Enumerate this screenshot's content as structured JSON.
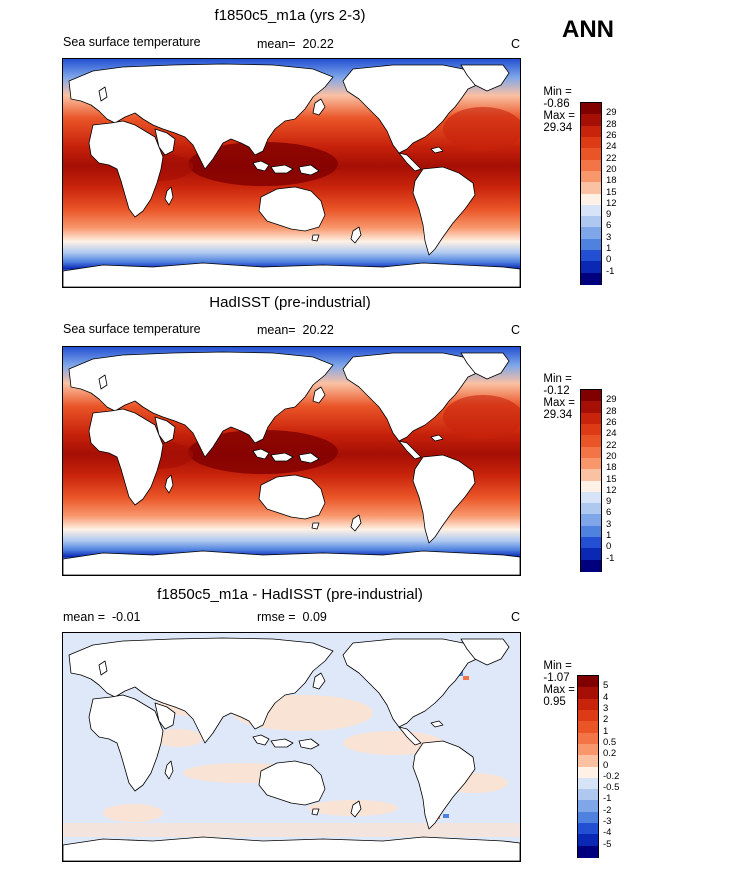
{
  "season": "ANN",
  "units": "C",
  "panels": [
    {
      "id": "model",
      "title": "f1850c5_m1a (yrs 2-3)",
      "field": "Sea surface temperature",
      "mean_label": "mean=",
      "mean_value": "20.22",
      "min_label": "Min =",
      "min_value": "-0.86",
      "max_label": "Max =",
      "max_value": "29.34",
      "levels": [
        "29",
        "28",
        "26",
        "24",
        "22",
        "20",
        "18",
        "15",
        "12",
        "9",
        "6",
        "3",
        "1",
        "0",
        "-1"
      ],
      "colors": [
        "#800000",
        "#a50f05",
        "#c8230b",
        "#dd3a16",
        "#ea5528",
        "#f37446",
        "#f7976b",
        "#fac1a3",
        "#fff1e5",
        "#d7e3f7",
        "#aec8f0",
        "#7fa6e8",
        "#4f82df",
        "#2350d3",
        "#0b28b5",
        "#00007f"
      ]
    },
    {
      "id": "obs",
      "title": "HadISST (pre-industrial)",
      "field": "Sea surface temperature",
      "mean_label": "mean=",
      "mean_value": "20.22",
      "min_label": "Min =",
      "min_value": "-0.12",
      "max_label": "Max =",
      "max_value": "29.34",
      "levels": [
        "29",
        "28",
        "26",
        "24",
        "22",
        "20",
        "18",
        "15",
        "12",
        "9",
        "6",
        "3",
        "1",
        "0",
        "-1"
      ],
      "colors": [
        "#800000",
        "#a50f05",
        "#c8230b",
        "#dd3a16",
        "#ea5528",
        "#f37446",
        "#f7976b",
        "#fac1a3",
        "#fff1e5",
        "#d7e3f7",
        "#aec8f0",
        "#7fa6e8",
        "#4f82df",
        "#2350d3",
        "#0b28b5",
        "#00007f"
      ]
    },
    {
      "id": "diff",
      "title": "f1850c5_m1a - HadISST (pre-industrial)",
      "mean_label": "mean =",
      "mean_value": "-0.01",
      "rmse_label": "rmse =",
      "rmse_value": "0.09",
      "min_label": "Min =",
      "min_value": "-1.07",
      "max_label": "Max =",
      "max_value": "0.95",
      "levels": [
        "5",
        "4",
        "3",
        "2",
        "1",
        "0.5",
        "0.2",
        "0",
        "-0.2",
        "-0.5",
        "-1",
        "-2",
        "-3",
        "-4",
        "-5"
      ],
      "colors": [
        "#800000",
        "#a50f05",
        "#c8230b",
        "#dd3a16",
        "#ea5528",
        "#f37446",
        "#f7976b",
        "#fac1a3",
        "#fff1e5",
        "#d7e3f7",
        "#aec8f0",
        "#7fa6e8",
        "#4f82df",
        "#2350d3",
        "#0b28b5",
        "#00007f"
      ]
    }
  ]
}
